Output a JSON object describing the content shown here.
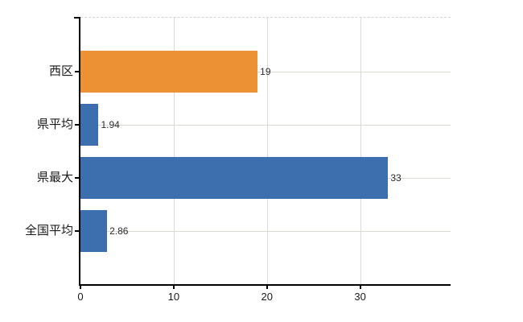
{
  "chart_data": {
    "type": "bar",
    "orientation": "horizontal",
    "title": "",
    "xlabel": "",
    "ylabel": "",
    "categories": [
      "西区",
      "県平均",
      "県最大",
      "全国平均"
    ],
    "values": [
      19,
      1.94,
      33,
      2.86
    ],
    "value_labels": [
      "19",
      "1.94",
      "33",
      "2.86"
    ],
    "bar_colors": [
      "#EC9235",
      "#3D6EAD",
      "#3D6EAD",
      "#3D6EAD"
    ],
    "x_ticks": [
      "0",
      "10",
      "20",
      "30"
    ],
    "x_tick_values": [
      0,
      10,
      20,
      30
    ],
    "xlim": [
      0,
      39.7
    ],
    "grid": true,
    "legend": false,
    "background": "#FFFFFF"
  },
  "colors": {
    "highlight_bar": "#EC9235",
    "default_bar": "#3D6EAD",
    "axis": "#000000",
    "gridline_vertical": "#D9D9D9",
    "gridline_horizontal": "#D6DCD1",
    "top_border": "#D4D4D4",
    "text": "#1A1A1A"
  }
}
